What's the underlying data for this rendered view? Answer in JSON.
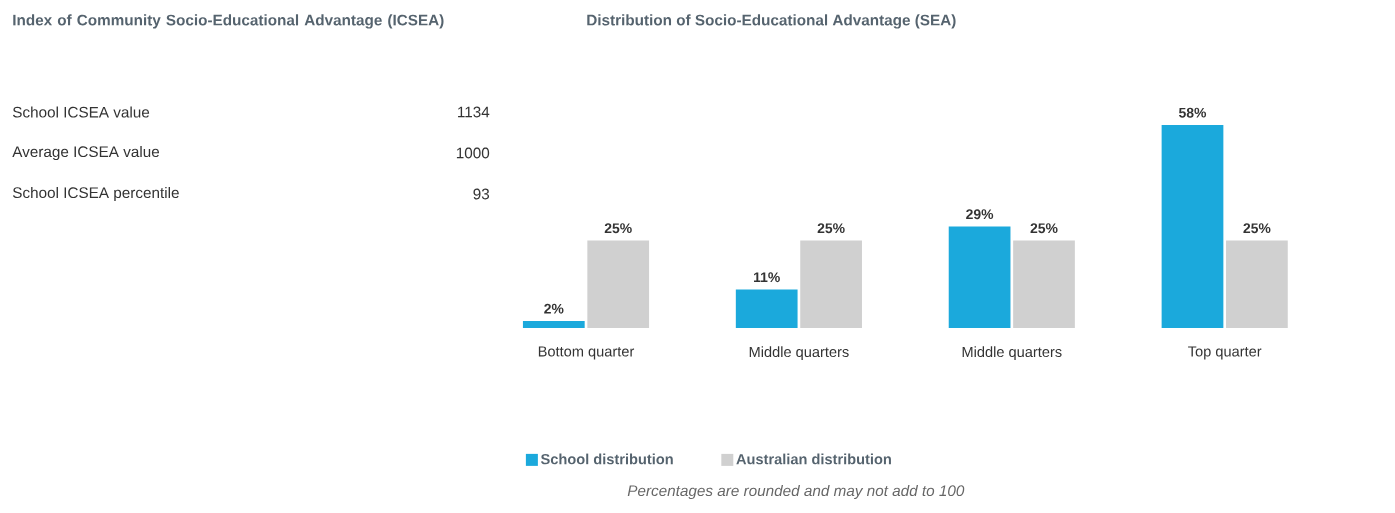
{
  "chart_data": [
    {
      "type": "other",
      "title": "Index of Community Socio-Educational Advantage (ICSEA)",
      "annotations": [
        "School ICSEA value",
        "1134",
        "Average ICSEA value",
        "1000",
        "School ICSEA percentile",
        "93"
      ]
    },
    {
      "type": "bar",
      "title": "Distribution of Socio-Educational Advantage (SEA)",
      "categories": [
        "Bottom quarter",
        "Middle quarters",
        "Middle quarters",
        "Top quarter"
      ],
      "series": [
        {
          "name": "School distribution",
          "color": "#1ba9dc",
          "values": [
            2,
            11,
            29,
            58
          ],
          "value_labels": [
            "2%",
            "11%",
            "29%",
            "58%"
          ]
        },
        {
          "name": "Australian distribution",
          "color": "#d0d0d0",
          "values": [
            25,
            25,
            25,
            25
          ],
          "value_labels": [
            "25%",
            "25%",
            "25%",
            "25%"
          ]
        }
      ],
      "legend": "bottom",
      "annotations": [
        "Percentages are rounded and may not add to 100"
      ]
    }
  ]
}
